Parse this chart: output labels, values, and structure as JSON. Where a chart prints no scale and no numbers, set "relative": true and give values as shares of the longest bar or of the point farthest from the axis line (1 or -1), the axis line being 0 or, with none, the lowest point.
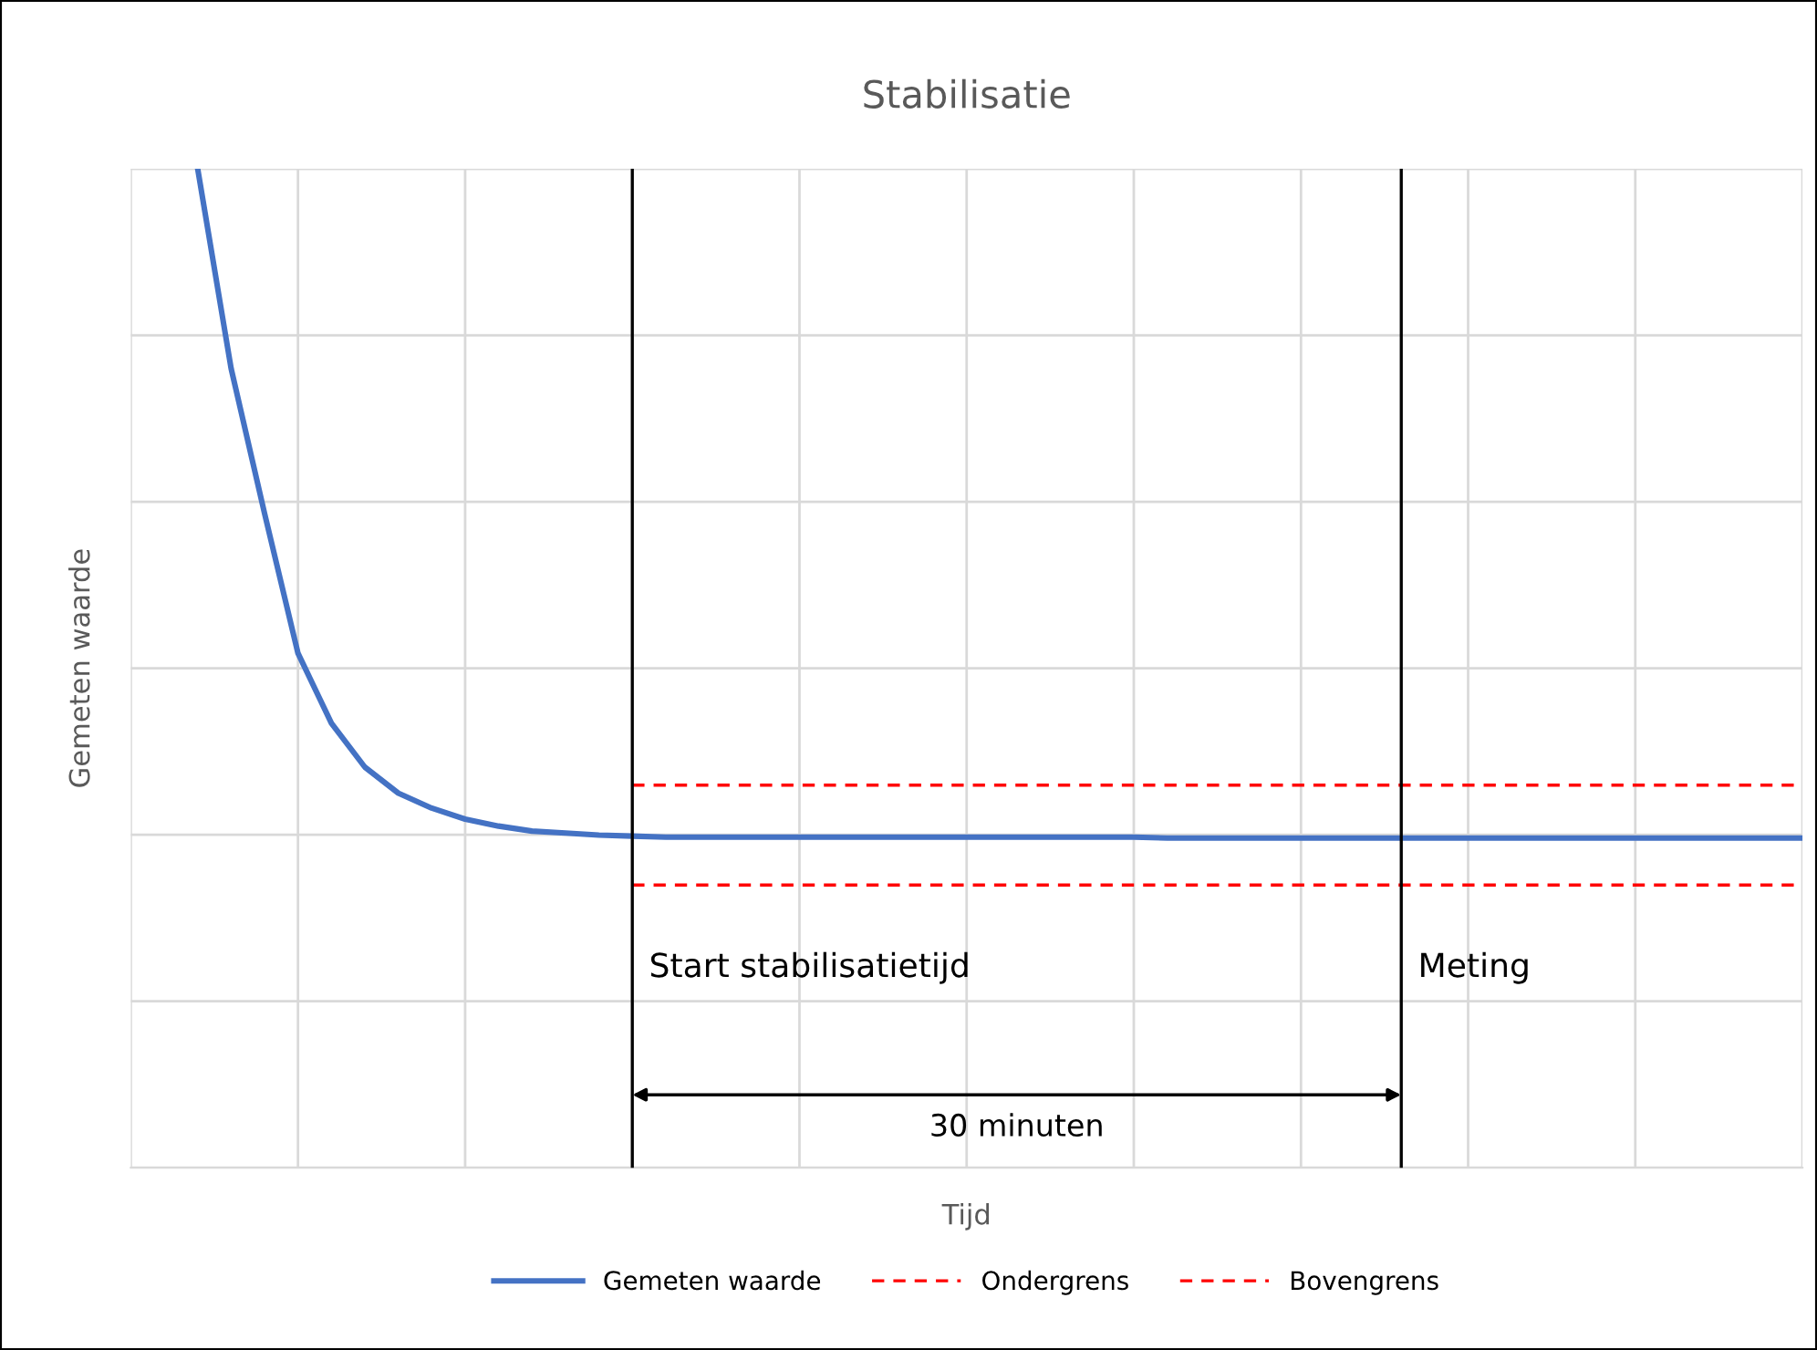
{
  "chart_data": {
    "type": "line",
    "title": "Stabilisatie",
    "xlabel": "Tijd",
    "ylabel": "Gemeten waarde",
    "relative": true,
    "categories": [
      null,
      null,
      null,
      null,
      null,
      null,
      null,
      null,
      null,
      null,
      null,
      null,
      null,
      null,
      null,
      null,
      null,
      null,
      null,
      null,
      null,
      null,
      null,
      null,
      null,
      null,
      null,
      null,
      null,
      null,
      null,
      null,
      null,
      null,
      null,
      null,
      null,
      null,
      null,
      null,
      null,
      null,
      null,
      null,
      null,
      null,
      null,
      null,
      null,
      null,
      null
    ],
    "series": [
      {
        "name": "Gemeten waarde",
        "color": "#4472c4",
        "line_style": "solid",
        "values": [
          null,
          null,
          1.0,
          0.8,
          0.655,
          0.515,
          0.445,
          0.401,
          0.375,
          0.36,
          0.349,
          0.342,
          0.337,
          0.335,
          0.333,
          0.332,
          0.331,
          0.331,
          0.331,
          0.331,
          0.331,
          0.331,
          0.331,
          0.331,
          0.331,
          0.331,
          0.331,
          0.331,
          0.331,
          0.331,
          0.331,
          0.33,
          0.33,
          0.33,
          0.33,
          0.33,
          0.33,
          0.33,
          0.33,
          0.33,
          0.33,
          0.33,
          0.33,
          0.33,
          0.33,
          0.33,
          0.33,
          0.33,
          0.33,
          0.33,
          0.33
        ]
      },
      {
        "name": "Ondergrens",
        "color": "#ff0000",
        "line_style": "dashed",
        "values": [
          null,
          null,
          null,
          null,
          null,
          null,
          null,
          null,
          null,
          null,
          null,
          null,
          null,
          null,
          null,
          0.283,
          0.283,
          0.283,
          0.283,
          0.283,
          0.283,
          0.283,
          0.283,
          0.283,
          0.283,
          0.283,
          0.283,
          0.283,
          0.283,
          0.283,
          0.283,
          0.283,
          0.283,
          0.283,
          0.283,
          0.283,
          0.283,
          0.283,
          0.283,
          0.283,
          0.283,
          0.283,
          0.283,
          0.283,
          0.283,
          0.283,
          0.283,
          0.283,
          0.283,
          0.283,
          0.283
        ]
      },
      {
        "name": "Bovengrens",
        "color": "#ff0000",
        "line_style": "dashed",
        "values": [
          null,
          null,
          null,
          null,
          null,
          null,
          null,
          null,
          null,
          null,
          null,
          null,
          null,
          null,
          null,
          0.383,
          0.383,
          0.383,
          0.383,
          0.383,
          0.383,
          0.383,
          0.383,
          0.383,
          0.383,
          0.383,
          0.383,
          0.383,
          0.383,
          0.383,
          0.383,
          0.383,
          0.383,
          0.383,
          0.383,
          0.383,
          0.383,
          0.383,
          0.383,
          0.383,
          0.383,
          0.383,
          0.383,
          0.383,
          0.383,
          0.383,
          0.383,
          0.383,
          0.383,
          0.383,
          0.383
        ]
      }
    ],
    "annotations": [
      "Start stabilisatietijd",
      "Meting",
      "30 minuten"
    ],
    "grid": true,
    "legend": "bottom",
    "tick_labels": false
  }
}
